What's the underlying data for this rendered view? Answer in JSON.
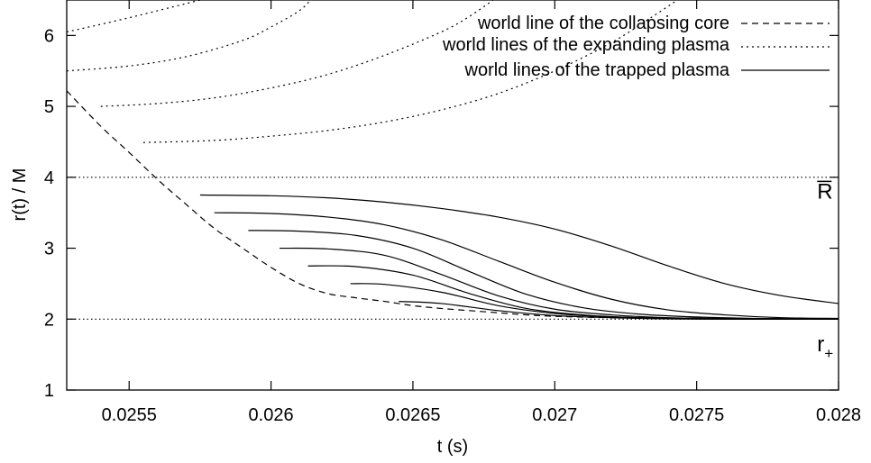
{
  "chart_data": {
    "type": "line",
    "title": "",
    "xlabel": "t (s)",
    "ylabel": "r(t) / M",
    "xlim": [
      0.02528,
      0.028
    ],
    "ylim": [
      1,
      6.5
    ],
    "x_ticks": [
      "0.0255",
      "0.026",
      "0.0265",
      "0.027",
      "0.0275",
      "0.028"
    ],
    "y_ticks": [
      "1",
      "2",
      "3",
      "4",
      "5",
      "6"
    ],
    "grid": false,
    "legend": {
      "placement": "top-right",
      "entries": [
        {
          "label": "world line of the collapsing core",
          "style": "dashed"
        },
        {
          "label": "world lines of the expanding plasma",
          "style": "dotted"
        },
        {
          "label": "world lines of the trapped plasma",
          "style": "solid"
        }
      ]
    },
    "annotations": [
      {
        "text": "R",
        "overline": true,
        "x": 0.02795,
        "y": 3.65
      },
      {
        "text": "r",
        "subscript": "+",
        "x": 0.02795,
        "y": 1.6
      }
    ],
    "reference_lines": [
      {
        "y": 4.0,
        "style": "dotted"
      },
      {
        "y": 2.0,
        "style": "dotted"
      }
    ],
    "series": [
      {
        "style": "dashed",
        "points": [
          [
            0.02528,
            5.22
          ],
          [
            0.0254,
            4.72
          ],
          [
            0.0255,
            4.35
          ],
          [
            0.0256,
            3.97
          ],
          [
            0.0257,
            3.62
          ],
          [
            0.0258,
            3.28
          ],
          [
            0.0259,
            3.0
          ],
          [
            0.026,
            2.73
          ],
          [
            0.0261,
            2.5
          ],
          [
            0.0262,
            2.36
          ],
          [
            0.0263,
            2.3
          ],
          [
            0.0264,
            2.25
          ],
          [
            0.0265,
            2.19
          ],
          [
            0.0266,
            2.15
          ],
          [
            0.0267,
            2.12
          ],
          [
            0.0268,
            2.09
          ],
          [
            0.0269,
            2.06
          ],
          [
            0.027,
            2.04
          ],
          [
            0.0272,
            2.02
          ],
          [
            0.0275,
            2.01
          ],
          [
            0.028,
            2.0
          ]
        ]
      },
      {
        "style": "dotted",
        "points": [
          [
            0.02528,
            6.05
          ],
          [
            0.0255,
            6.25
          ],
          [
            0.0258,
            6.55
          ]
        ]
      },
      {
        "style": "dotted",
        "points": [
          [
            0.02528,
            5.5
          ],
          [
            0.0255,
            5.57
          ],
          [
            0.0257,
            5.7
          ],
          [
            0.0259,
            5.93
          ],
          [
            0.026,
            6.12
          ],
          [
            0.0261,
            6.35
          ],
          [
            0.02615,
            6.55
          ]
        ]
      },
      {
        "style": "dotted",
        "points": [
          [
            0.0254,
            5.0
          ],
          [
            0.0256,
            5.04
          ],
          [
            0.0258,
            5.12
          ],
          [
            0.026,
            5.26
          ],
          [
            0.0262,
            5.45
          ],
          [
            0.0264,
            5.72
          ],
          [
            0.0266,
            6.05
          ],
          [
            0.0267,
            6.27
          ],
          [
            0.0268,
            6.55
          ]
        ]
      },
      {
        "style": "dotted",
        "points": [
          [
            0.02555,
            4.49
          ],
          [
            0.0258,
            4.52
          ],
          [
            0.026,
            4.58
          ],
          [
            0.0262,
            4.66
          ],
          [
            0.0264,
            4.78
          ],
          [
            0.0266,
            4.95
          ],
          [
            0.0268,
            5.18
          ],
          [
            0.027,
            5.5
          ],
          [
            0.0272,
            5.9
          ],
          [
            0.02735,
            6.28
          ],
          [
            0.02745,
            6.55
          ]
        ]
      },
      {
        "style": "solid",
        "points": [
          [
            0.02575,
            3.75
          ],
          [
            0.026,
            3.74
          ],
          [
            0.0262,
            3.71
          ],
          [
            0.0264,
            3.65
          ],
          [
            0.0266,
            3.56
          ],
          [
            0.0268,
            3.44
          ],
          [
            0.027,
            3.27
          ],
          [
            0.0272,
            3.03
          ],
          [
            0.0274,
            2.75
          ],
          [
            0.0276,
            2.5
          ],
          [
            0.0278,
            2.33
          ],
          [
            0.028,
            2.22
          ]
        ]
      },
      {
        "style": "solid",
        "points": [
          [
            0.0258,
            3.5
          ],
          [
            0.026,
            3.49
          ],
          [
            0.0262,
            3.44
          ],
          [
            0.0264,
            3.33
          ],
          [
            0.0266,
            3.12
          ],
          [
            0.0268,
            2.82
          ],
          [
            0.027,
            2.52
          ],
          [
            0.0272,
            2.28
          ],
          [
            0.0274,
            2.13
          ],
          [
            0.0276,
            2.06
          ],
          [
            0.0278,
            2.02
          ],
          [
            0.028,
            2.01
          ]
        ]
      },
      {
        "style": "solid",
        "points": [
          [
            0.02592,
            3.25
          ],
          [
            0.0261,
            3.24
          ],
          [
            0.0263,
            3.18
          ],
          [
            0.0265,
            3.0
          ],
          [
            0.0267,
            2.67
          ],
          [
            0.0269,
            2.35
          ],
          [
            0.0271,
            2.16
          ],
          [
            0.0273,
            2.07
          ],
          [
            0.0275,
            2.03
          ],
          [
            0.0277,
            2.01
          ],
          [
            0.028,
            2.0
          ]
        ]
      },
      {
        "style": "solid",
        "points": [
          [
            0.02603,
            3.0
          ],
          [
            0.0262,
            2.99
          ],
          [
            0.0264,
            2.9
          ],
          [
            0.0266,
            2.63
          ],
          [
            0.0268,
            2.33
          ],
          [
            0.027,
            2.14
          ],
          [
            0.0272,
            2.06
          ],
          [
            0.0274,
            2.02
          ],
          [
            0.0276,
            2.01
          ],
          [
            0.028,
            2.0
          ]
        ]
      },
      {
        "style": "solid",
        "points": [
          [
            0.02613,
            2.75
          ],
          [
            0.0263,
            2.74
          ],
          [
            0.0265,
            2.62
          ],
          [
            0.0267,
            2.36
          ],
          [
            0.0269,
            2.15
          ],
          [
            0.0271,
            2.06
          ],
          [
            0.0273,
            2.02
          ],
          [
            0.0276,
            2.0
          ],
          [
            0.028,
            2.0
          ]
        ]
      },
      {
        "style": "solid",
        "points": [
          [
            0.02628,
            2.5
          ],
          [
            0.0264,
            2.49
          ],
          [
            0.0266,
            2.38
          ],
          [
            0.0268,
            2.19
          ],
          [
            0.027,
            2.08
          ],
          [
            0.0272,
            2.03
          ],
          [
            0.0275,
            2.01
          ],
          [
            0.028,
            2.0
          ]
        ]
      },
      {
        "style": "solid",
        "points": [
          [
            0.02645,
            2.25
          ],
          [
            0.0266,
            2.22
          ],
          [
            0.0268,
            2.12
          ],
          [
            0.027,
            2.05
          ],
          [
            0.0272,
            2.02
          ],
          [
            0.0275,
            2.0
          ],
          [
            0.028,
            2.0
          ]
        ]
      }
    ]
  }
}
